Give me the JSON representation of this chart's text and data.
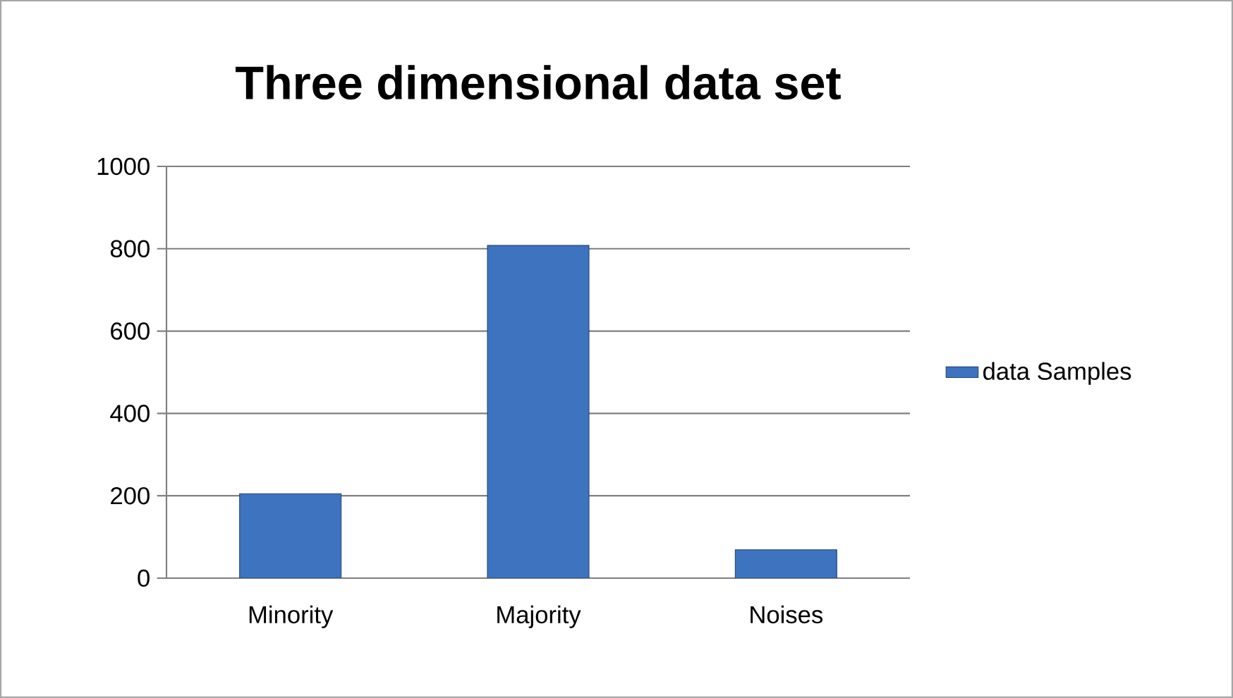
{
  "chart_data": {
    "type": "bar",
    "title": "Three dimensional data set",
    "categories": [
      "Minority",
      "Majority",
      "Noises"
    ],
    "series": [
      {
        "name": "data Samples",
        "color": "#3d73bf",
        "values": [
          205,
          808,
          69
        ]
      }
    ],
    "ylim": [
      0,
      1000
    ],
    "yticks": [
      0,
      200,
      400,
      600,
      800,
      1000
    ],
    "grid": "y",
    "legend": "right"
  }
}
